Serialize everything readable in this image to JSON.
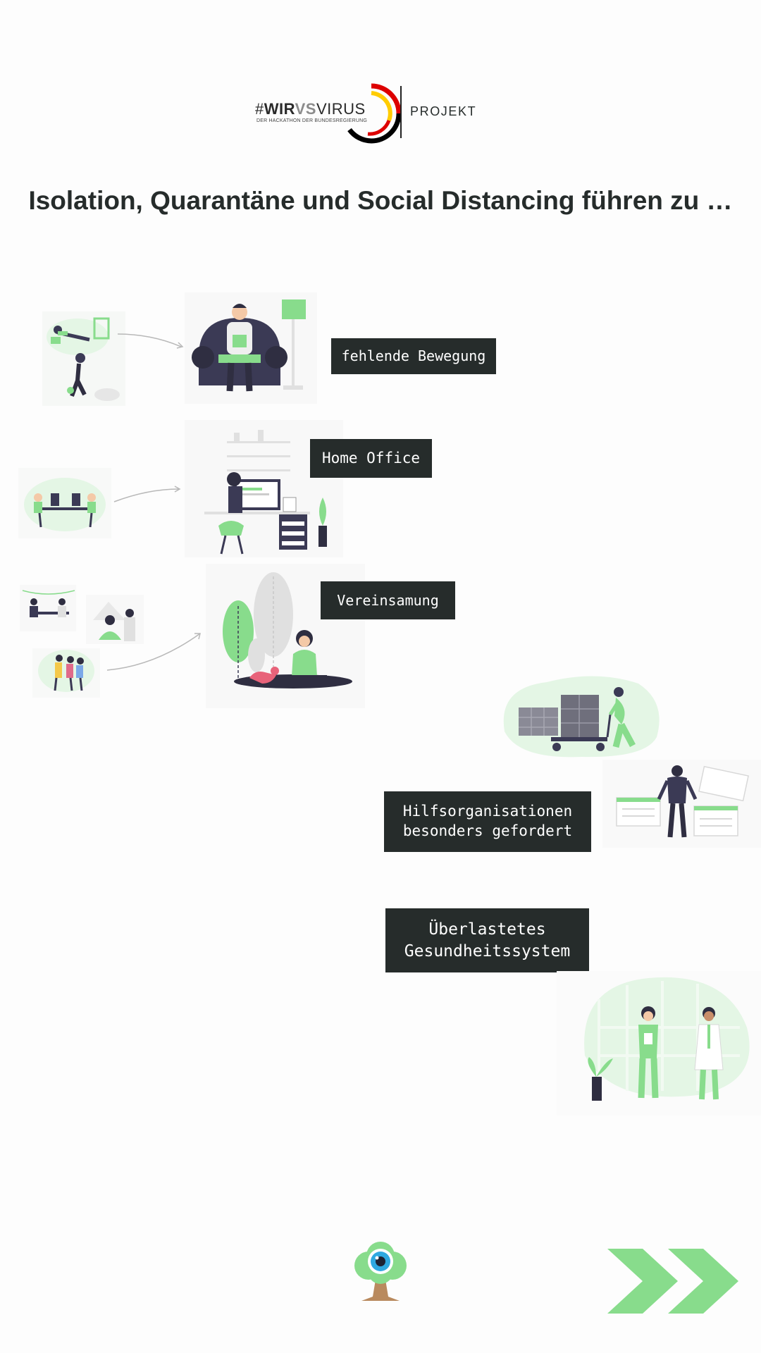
{
  "header": {
    "logo_hash": "#",
    "logo_wir": "WIR",
    "logo_vs": "VS",
    "logo_virus": "VIRUS",
    "logo_subtitle": "DER HACKATHON DER BUNDESREGIERUNG",
    "logo_suffix": "PROJEKT"
  },
  "headline": "Isolation, Quarantäne und Social Distancing führen zu …",
  "items": [
    {
      "label": "fehlende Bewegung"
    },
    {
      "label": "Home Office"
    },
    {
      "label": "Vereinsamung"
    },
    {
      "label": "Hilfsorganisationen\nbesonders gefordert"
    },
    {
      "label": "Überlastetes\nGesundheitssystem"
    }
  ],
  "colors": {
    "accent_green": "#88dc8c",
    "dark_label": "#262c2b",
    "navy": "#3b3a55",
    "logo_red": "#dd0000",
    "logo_gold": "#ffcc00",
    "logo_black": "#000000"
  },
  "icons": {
    "footer_logo": "tree-eye-icon",
    "next": "double-chevron-right-icon"
  }
}
